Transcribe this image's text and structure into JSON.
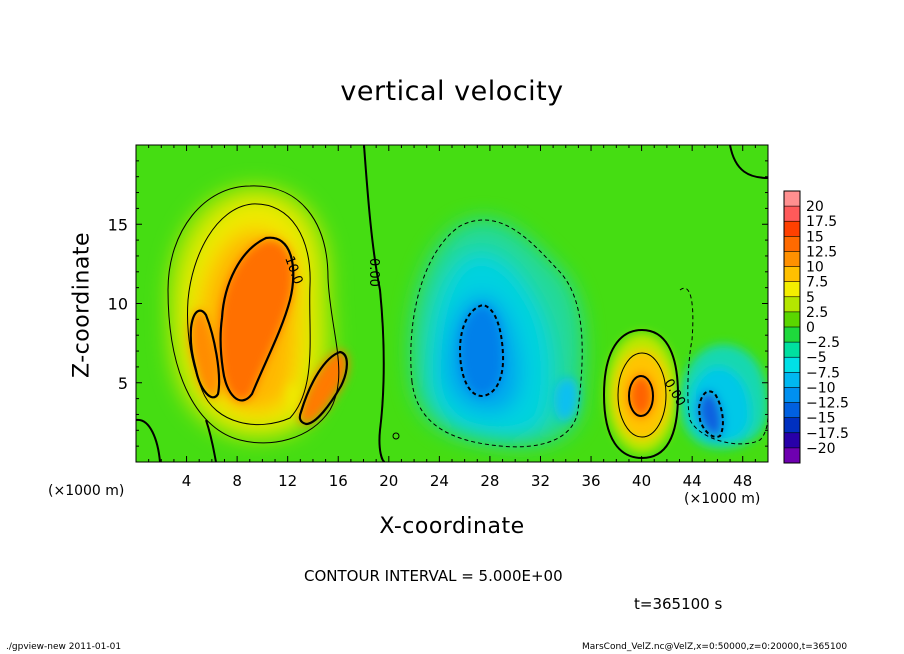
{
  "footer": {
    "program": "./gpview-new   2011-01-01",
    "file_info": "MarsCond_VelZ.nc@VelZ,x=0:50000,z=0:20000,t=365100"
  },
  "annotations": {
    "contour_interval": "CONTOUR INTERVAL = 5.000E+00",
    "time": "t=365100 s",
    "x_unit_left": "(×1000 m)",
    "x_unit_right": "(×1000 m)",
    "contour_labels": [
      "10.0",
      "0.00",
      "0.00",
      "0.00"
    ]
  },
  "chart_data": {
    "type": "heatmap",
    "title": "vertical velocity",
    "xlabel": "X-coordinate",
    "ylabel": "Z-coordinate",
    "x_unit": "(×1000 m)",
    "xlim": [
      0,
      50
    ],
    "ylim": [
      0,
      20
    ],
    "x_ticks": [
      4,
      8,
      12,
      16,
      20,
      24,
      28,
      32,
      36,
      40,
      44,
      48
    ],
    "y_ticks": [
      5,
      10,
      15
    ],
    "colorbar": {
      "labels": [
        "20",
        "17.5",
        "15",
        "12.5",
        "10",
        "7.5",
        "5",
        "2.5",
        "0",
        "−2.5",
        "−5",
        "−7.5",
        "−10",
        "−12.5",
        "−15",
        "−17.5",
        "−20"
      ],
      "colors": [
        "#ff9090",
        "#ff5a5a",
        "#ff4000",
        "#ff6a00",
        "#ff9000",
        "#ffc000",
        "#f4ee00",
        "#b4e600",
        "#5ad600",
        "#1ed93c",
        "#00e0a0",
        "#00e0e6",
        "#00b8f0",
        "#0090f0",
        "#0060e0",
        "#0030c0",
        "#2800a8",
        "#6e00b0"
      ]
    },
    "features": [
      {
        "type": "updraft",
        "x": 9,
        "z": 8.5,
        "peak": 14
      },
      {
        "type": "updraft",
        "x": 14.5,
        "z": 5,
        "peak": 12
      },
      {
        "type": "updraft",
        "x": 40,
        "z": 4,
        "peak": 12
      },
      {
        "type": "downdraft",
        "x": 27,
        "z": 7,
        "peak": -11
      },
      {
        "type": "downdraft",
        "x": 46,
        "z": 3.5,
        "peak": -11
      }
    ]
  }
}
